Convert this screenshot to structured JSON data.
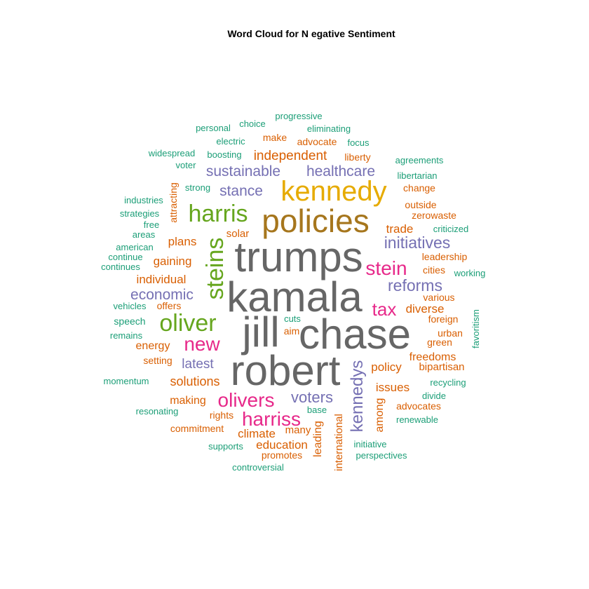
{
  "title": "Word Cloud for N egative Sentiment",
  "colors": {
    "teal": "#1b9e77",
    "orange": "#d95f02",
    "purple": "#7570b3",
    "pink": "#e7298a",
    "green": "#66a61e",
    "gold": "#e6ab02",
    "brown": "#a6761d",
    "gray": "#666666"
  },
  "words": [
    {
      "text": "trumps",
      "color": "gray"
    },
    {
      "text": "kamala",
      "color": "gray"
    },
    {
      "text": "jill",
      "color": "gray"
    },
    {
      "text": "chase",
      "color": "gray"
    },
    {
      "text": "robert",
      "color": "gray"
    },
    {
      "text": "policies",
      "color": "brown"
    },
    {
      "text": "kennedy",
      "color": "gold"
    },
    {
      "text": "harris",
      "color": "green"
    },
    {
      "text": "steins",
      "color": "green"
    },
    {
      "text": "oliver",
      "color": "green"
    },
    {
      "text": "new",
      "color": "pink"
    },
    {
      "text": "olivers",
      "color": "pink"
    },
    {
      "text": "harriss",
      "color": "pink"
    },
    {
      "text": "stein",
      "color": "pink"
    },
    {
      "text": "tax",
      "color": "pink"
    },
    {
      "text": "kennedys",
      "color": "purple"
    },
    {
      "text": "voters",
      "color": "purple"
    },
    {
      "text": "initiatives",
      "color": "purple"
    },
    {
      "text": "reforms",
      "color": "purple"
    },
    {
      "text": "healthcare",
      "color": "purple"
    },
    {
      "text": "sustainable",
      "color": "purple"
    },
    {
      "text": "stance",
      "color": "purple"
    },
    {
      "text": "economic",
      "color": "purple"
    },
    {
      "text": "latest",
      "color": "purple"
    },
    {
      "text": "independent",
      "color": "orange"
    },
    {
      "text": "trade",
      "color": "orange"
    },
    {
      "text": "plans",
      "color": "orange"
    },
    {
      "text": "gaining",
      "color": "orange"
    },
    {
      "text": "individual",
      "color": "orange"
    },
    {
      "text": "diverse",
      "color": "orange"
    },
    {
      "text": "policy",
      "color": "orange"
    },
    {
      "text": "solutions",
      "color": "orange"
    },
    {
      "text": "issues",
      "color": "orange"
    },
    {
      "text": "climate",
      "color": "orange"
    },
    {
      "text": "education",
      "color": "orange"
    },
    {
      "text": "energy",
      "color": "orange"
    },
    {
      "text": "freedoms",
      "color": "orange"
    },
    {
      "text": "making",
      "color": "orange"
    },
    {
      "text": "among",
      "color": "orange"
    },
    {
      "text": "leading",
      "color": "orange"
    },
    {
      "text": "international",
      "color": "orange"
    },
    {
      "text": "solar",
      "color": "orange"
    },
    {
      "text": "make",
      "color": "orange"
    },
    {
      "text": "advocate",
      "color": "orange"
    },
    {
      "text": "liberty",
      "color": "orange"
    },
    {
      "text": "change",
      "color": "orange"
    },
    {
      "text": "outside",
      "color": "orange"
    },
    {
      "text": "zerowaste",
      "color": "orange"
    },
    {
      "text": "leadership",
      "color": "orange"
    },
    {
      "text": "cities",
      "color": "orange"
    },
    {
      "text": "various",
      "color": "orange"
    },
    {
      "text": "foreign",
      "color": "orange"
    },
    {
      "text": "urban",
      "color": "orange"
    },
    {
      "text": "green",
      "color": "orange"
    },
    {
      "text": "bipartisan",
      "color": "orange"
    },
    {
      "text": "advocates",
      "color": "orange"
    },
    {
      "text": "offers",
      "color": "orange"
    },
    {
      "text": "setting",
      "color": "orange"
    },
    {
      "text": "aim",
      "color": "orange"
    },
    {
      "text": "rights",
      "color": "orange"
    },
    {
      "text": "commitment",
      "color": "orange"
    },
    {
      "text": "many",
      "color": "orange"
    },
    {
      "text": "promotes",
      "color": "orange"
    },
    {
      "text": "attracting",
      "color": "orange"
    },
    {
      "text": "progressive",
      "color": "teal"
    },
    {
      "text": "personal",
      "color": "teal"
    },
    {
      "text": "choice",
      "color": "teal"
    },
    {
      "text": "eliminating",
      "color": "teal"
    },
    {
      "text": "electric",
      "color": "teal"
    },
    {
      "text": "focus",
      "color": "teal"
    },
    {
      "text": "widespread",
      "color": "teal"
    },
    {
      "text": "boosting",
      "color": "teal"
    },
    {
      "text": "agreements",
      "color": "teal"
    },
    {
      "text": "voter",
      "color": "teal"
    },
    {
      "text": "libertarian",
      "color": "teal"
    },
    {
      "text": "strong",
      "color": "teal"
    },
    {
      "text": "industries",
      "color": "teal"
    },
    {
      "text": "strategies",
      "color": "teal"
    },
    {
      "text": "free",
      "color": "teal"
    },
    {
      "text": "areas",
      "color": "teal"
    },
    {
      "text": "criticized",
      "color": "teal"
    },
    {
      "text": "american",
      "color": "teal"
    },
    {
      "text": "continue",
      "color": "teal"
    },
    {
      "text": "continues",
      "color": "teal"
    },
    {
      "text": "working",
      "color": "teal"
    },
    {
      "text": "vehicles",
      "color": "teal"
    },
    {
      "text": "speech",
      "color": "teal"
    },
    {
      "text": "cuts",
      "color": "teal"
    },
    {
      "text": "remains",
      "color": "teal"
    },
    {
      "text": "favoritism",
      "color": "teal"
    },
    {
      "text": "momentum",
      "color": "teal"
    },
    {
      "text": "recycling",
      "color": "teal"
    },
    {
      "text": "divide",
      "color": "teal"
    },
    {
      "text": "resonating",
      "color": "teal"
    },
    {
      "text": "base",
      "color": "teal"
    },
    {
      "text": "renewable",
      "color": "teal"
    },
    {
      "text": "supports",
      "color": "teal"
    },
    {
      "text": "initiative",
      "color": "teal"
    },
    {
      "text": "perspectives",
      "color": "teal"
    },
    {
      "text": "controversial",
      "color": "teal"
    }
  ]
}
